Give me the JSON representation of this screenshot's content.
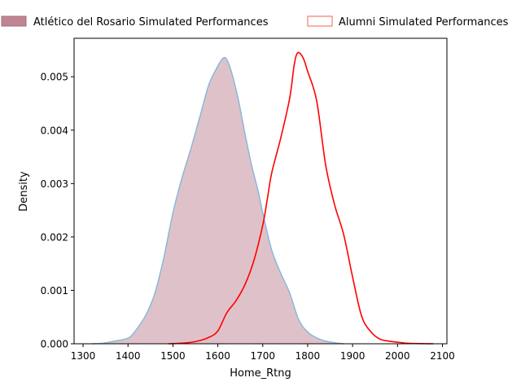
{
  "chart_data": {
    "type": "area",
    "xlabel": "Home_Rtng",
    "ylabel": "Density",
    "xlim": [
      1280,
      2110
    ],
    "ylim": [
      0,
      0.00572
    ],
    "xticks": [
      1300,
      1400,
      1500,
      1600,
      1700,
      1800,
      1900,
      2000,
      2100
    ],
    "xtick_labels": [
      "1300",
      "1400",
      "1500",
      "1600",
      "1700",
      "1800",
      "1900",
      "2000",
      "2100"
    ],
    "yticks": [
      0,
      0.001,
      0.002,
      0.003,
      0.004,
      0.005
    ],
    "ytick_labels": [
      "0.000",
      "0.001",
      "0.002",
      "0.003",
      "0.004",
      "0.005"
    ],
    "grid": false,
    "legend_position": "top, outside plot, two columns",
    "series": [
      {
        "name": "Atlético del Rosario Simulated Performances",
        "style": "filled",
        "fill_color": "#c08593",
        "line_color": "#8ab8d8",
        "x": [
          1320,
          1345,
          1370,
          1390,
          1405,
          1420,
          1440,
          1460,
          1480,
          1500,
          1520,
          1540,
          1560,
          1580,
          1600,
          1612,
          1620,
          1630,
          1645,
          1660,
          1675,
          1690,
          1700,
          1720,
          1740,
          1760,
          1780,
          1800,
          1820,
          1840,
          1860,
          1880
        ],
        "y": [
          0,
          1e-05,
          5e-05,
          8e-05,
          0.00013,
          0.00028,
          0.00054,
          0.00095,
          0.00162,
          0.00245,
          0.0031,
          0.00365,
          0.00425,
          0.00485,
          0.0052,
          0.00535,
          0.00532,
          0.0051,
          0.0046,
          0.00395,
          0.00335,
          0.00285,
          0.00245,
          0.00175,
          0.00132,
          0.00095,
          0.00045,
          0.00022,
          0.00011,
          5e-05,
          2e-05,
          0
        ]
      },
      {
        "name": "Alumni Simulated Performances",
        "style": "line",
        "line_color": "#ff0000",
        "x": [
          1490,
          1520,
          1550,
          1580,
          1600,
          1620,
          1640,
          1660,
          1680,
          1700,
          1710,
          1720,
          1740,
          1760,
          1770,
          1778,
          1790,
          1800,
          1820,
          1840,
          1860,
          1880,
          1900,
          1920,
          1940,
          1960,
          1980,
          2000,
          2020,
          2040,
          2060,
          2080
        ],
        "y": [
          0,
          1e-05,
          4e-05,
          0.00012,
          0.00024,
          0.00058,
          0.0008,
          0.0011,
          0.00155,
          0.00222,
          0.0027,
          0.0032,
          0.00385,
          0.0046,
          0.00522,
          0.00545,
          0.00535,
          0.0051,
          0.00455,
          0.00335,
          0.0026,
          0.00205,
          0.00125,
          0.00052,
          0.00023,
          9e-05,
          5e-05,
          3e-05,
          1e-05,
          5e-06,
          2e-06,
          0
        ]
      }
    ]
  }
}
